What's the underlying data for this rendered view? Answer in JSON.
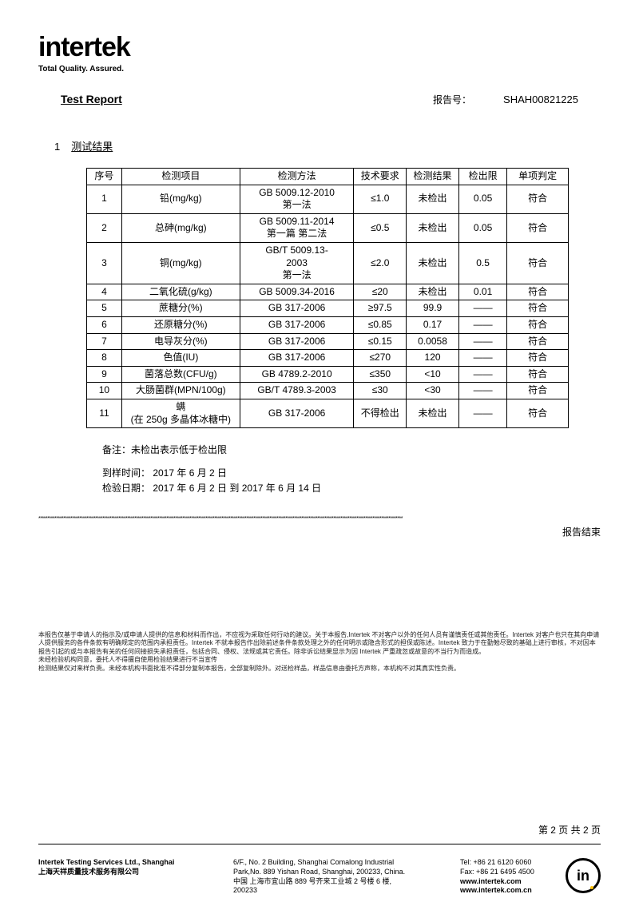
{
  "logo": {
    "brand": "intertek",
    "tagline": "Total Quality. Assured."
  },
  "header": {
    "title": "Test Report",
    "report_no_label": "报告号：",
    "report_no": "SHAH00821225"
  },
  "section": {
    "num": "1",
    "title": "测试结果"
  },
  "table": {
    "columns": [
      "序号",
      "检测项目",
      "检测方法",
      "技术要求",
      "检测结果",
      "检出限",
      "单项判定"
    ],
    "rows": [
      [
        "1",
        "铅(mg/kg)",
        "GB 5009.12-2010\n第一法",
        "≤1.0",
        "未检出",
        "0.05",
        "符合"
      ],
      [
        "2",
        "总砷(mg/kg)",
        "GB 5009.11-2014\n第一篇 第二法",
        "≤0.5",
        "未检出",
        "0.05",
        "符合"
      ],
      [
        "3",
        "铜(mg/kg)",
        "GB/T 5009.13-\n2003\n第一法",
        "≤2.0",
        "未检出",
        "0.5",
        "符合"
      ],
      [
        "4",
        "二氧化硫(g/kg)",
        "GB 5009.34-2016",
        "≤20",
        "未检出",
        "0.01",
        "符合"
      ],
      [
        "5",
        "蔗糖分(%)",
        "GB 317-2006",
        "≥97.5",
        "99.9",
        "——",
        "符合"
      ],
      [
        "6",
        "还原糖分(%)",
        "GB 317-2006",
        "≤0.85",
        "0.17",
        "——",
        "符合"
      ],
      [
        "7",
        "电导灰分(%)",
        "GB 317-2006",
        "≤0.15",
        "0.0058",
        "——",
        "符合"
      ],
      [
        "8",
        "色值(IU)",
        "GB 317-2006",
        "≤270",
        "120",
        "——",
        "符合"
      ],
      [
        "9",
        "菌落总数(CFU/g)",
        "GB 4789.2-2010",
        "≤350",
        "<10",
        "——",
        "符合"
      ],
      [
        "10",
        "大肠菌群(MPN/100g)",
        "GB/T 4789.3-2003",
        "≤30",
        "<30",
        "——",
        "符合"
      ],
      [
        "11",
        "螨\n(在 250g 多晶体冰糖中)",
        "GB 317-2006",
        "不得检出",
        "未检出",
        "——",
        "符合"
      ]
    ]
  },
  "notes": {
    "remark": "备注：未检出表示低于检出限",
    "sample_date": "到样时间： 2017 年 6 月 2 日",
    "test_date": "检验日期： 2017 年 6 月 2 日 到 2017 年 6 月 14 日"
  },
  "end_label": "报告结束",
  "disclaimer": [
    "本报告仅基于申请人的指示及/或申请人提供的信息和材料而作出，不应视为采取任何行动的建议。关于本报告,Intertek 不对客户以外的任何人员有谨慎责任或其他责任。Intertek 对客户也只在其向申请人提供服务的各件条款有明确规定的范围内承担责任。Intertek 不就本报告作出除前述条件条款处理之外的任何明示或隐含形式的担保或陈述。Intertek 致力于在勤勉尽致的基础上进行审核，不对因本报告引起的或与本报告有关的任何间接损失承担责任，包括合同、侵权、法规或其它责任。除非诉讼结果显示为因 Intertek 严重疏忽或故意的不当行为而造成。",
    "未经检验机构同意，委托人不得擅自使用检验结果进行不当宣传",
    "检测结果仅对来样负责。未经本机构书面批准不得部分复制本报告，全部复制除外。对送检样品，样品信息由委托方声称，本机构不对其真实性负责。"
  ],
  "page_num": "第 2 页 共 2 页",
  "footer": {
    "company_en": "Intertek Testing Services Ltd., Shanghai",
    "company_cn": "上海天祥质量技术服务有限公司",
    "addr1": "6/F., No. 2 Building, Shanghai Comalong Industrial",
    "addr2": "Park,No. 889 Yishan Road, Shanghai, 200233, China.",
    "addr3": "中国 上海市宜山路 889 号齐来工业城 2 号楼 6 楼,",
    "addr4": "200233",
    "tel": "Tel: +86 21 6120 6060",
    "fax": "Fax: +86 21 6495 4500",
    "web1": "www.intertek.com",
    "web2": "www.intertek.com.cn"
  }
}
